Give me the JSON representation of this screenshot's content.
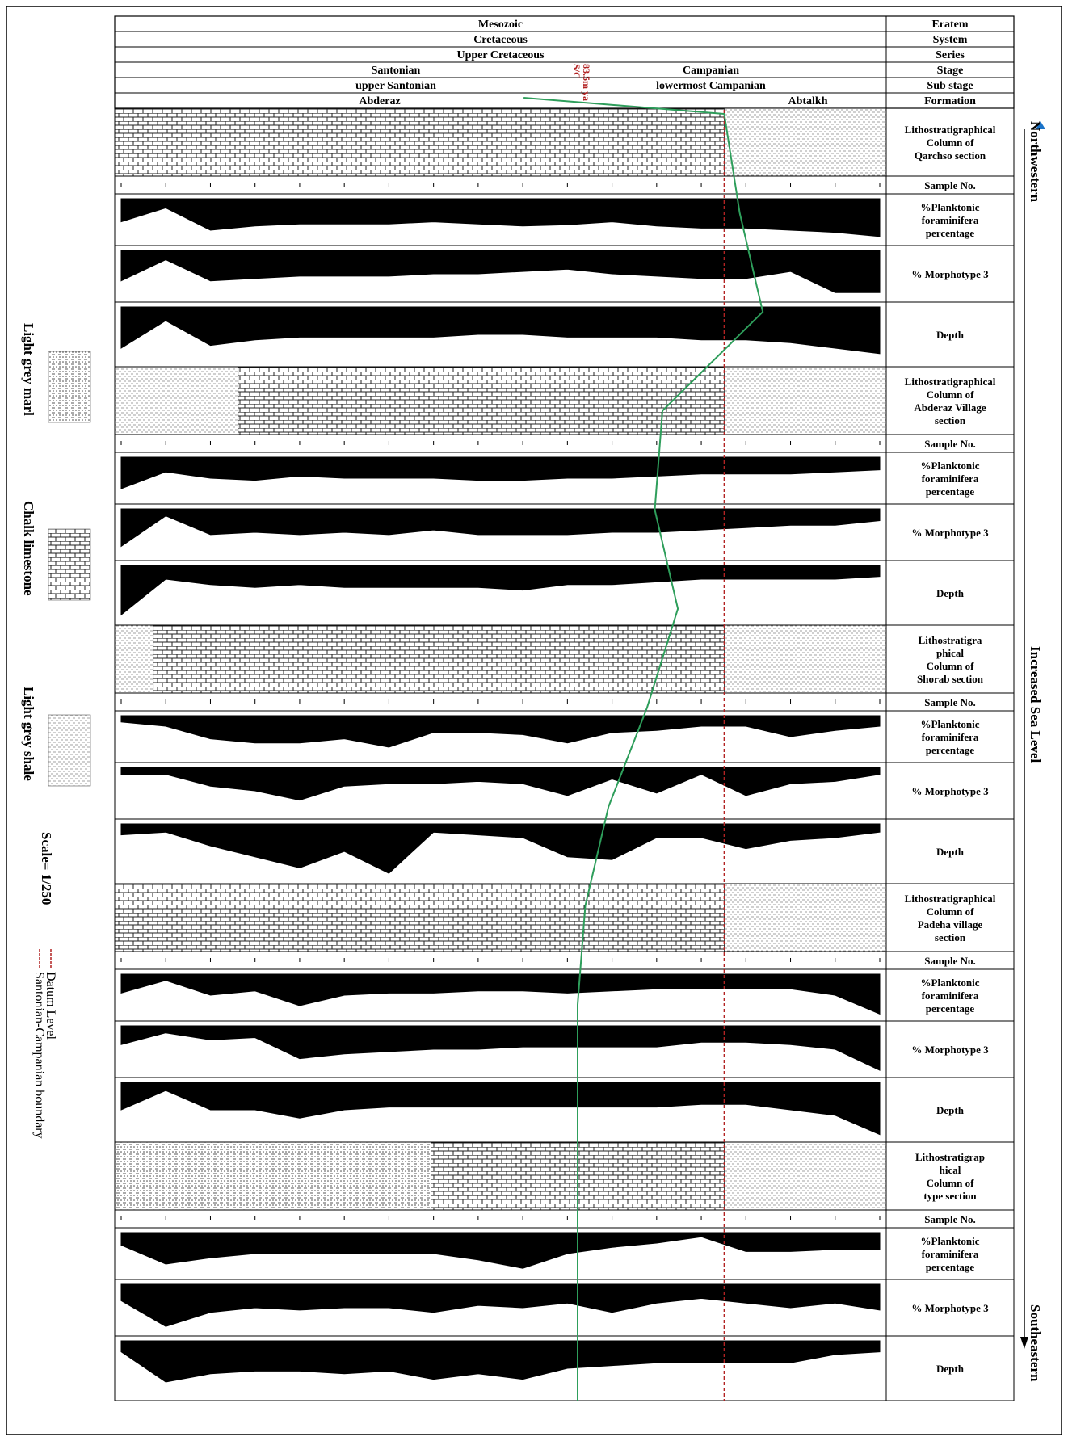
{
  "header_rows": [
    {
      "label": "Eratem",
      "cells": [
        "Mesozoic"
      ]
    },
    {
      "label": "System",
      "cells": [
        "Cretaceous"
      ]
    },
    {
      "label": "Series",
      "cells": [
        "Upper Cretaceous"
      ]
    },
    {
      "label": "Stage",
      "cells": [
        "Santonian",
        "Campanian"
      ]
    },
    {
      "label": "Sub stage",
      "cells": [
        "upper Santonian",
        "lowermost Campanian"
      ]
    },
    {
      "label": "Formation",
      "cells": [
        "Abderaz",
        "Abtalkh"
      ]
    }
  ],
  "boundary_marker": {
    "lines": [
      "S/C",
      "83.5m ya"
    ]
  },
  "legend": {
    "lithology": [
      {
        "name": "Light grey marl",
        "pattern": "marl"
      },
      {
        "name": "Chalk limestone",
        "pattern": "chalk"
      },
      {
        "name": "Light grey shale",
        "pattern": "shale"
      }
    ],
    "scale": "Scale= 1/250",
    "lines": [
      {
        "name": "Datum Level",
        "color": "#b22222"
      },
      {
        "name": "Santonian-Campanian boundary",
        "color": "#b22222"
      }
    ]
  },
  "right_axis": {
    "top": "Northwestern",
    "bottom": "Southeastern",
    "middle": "Increased Sea Level"
  },
  "sections": [
    {
      "litho_label": [
        "Lithostratigraphical",
        "Column of",
        "Qarchso section"
      ],
      "sample_label": "Sample No.",
      "litho_units": [
        {
          "to": 0.79,
          "pattern": "chalk"
        },
        {
          "to": 1.0,
          "pattern": "shale"
        }
      ],
      "curves": [
        {
          "label": [
            "%Planktonic",
            "foraminifera",
            "percentage"
          ],
          "values": [
            0.45,
            0.78,
            0.25,
            0.35,
            0.4,
            0.4,
            0.4,
            0.45,
            0.4,
            0.35,
            0.38,
            0.45,
            0.35,
            0.3,
            0.3,
            0.25,
            0.2,
            0.1
          ]
        },
        {
          "label": [
            "% Morphotype 3"
          ],
          "values": [
            0.35,
            0.8,
            0.35,
            0.4,
            0.45,
            0.45,
            0.45,
            0.5,
            0.5,
            0.55,
            0.6,
            0.5,
            0.45,
            0.4,
            0.4,
            0.55,
            0.1,
            0.1
          ]
        },
        {
          "label": [
            "Depth"
          ],
          "values": [
            0.25,
            0.75,
            0.3,
            0.4,
            0.45,
            0.45,
            0.45,
            0.45,
            0.5,
            0.5,
            0.45,
            0.45,
            0.45,
            0.4,
            0.4,
            0.35,
            0.25,
            0.15
          ]
        }
      ]
    },
    {
      "litho_label": [
        "Lithostratigraphical",
        "Column of",
        "Abderaz Village",
        "section"
      ],
      "sample_label": "Sample No.",
      "litho_units": [
        {
          "to": 0.16,
          "pattern": "shale"
        },
        {
          "to": 0.79,
          "pattern": "chalk"
        },
        {
          "to": 1.0,
          "pattern": "shale"
        }
      ],
      "curves": [
        {
          "label": [
            "%Planktonic",
            "foraminifera",
            "percentage"
          ],
          "values": [
            0.25,
            0.65,
            0.5,
            0.45,
            0.55,
            0.5,
            0.5,
            0.5,
            0.45,
            0.45,
            0.5,
            0.5,
            0.55,
            0.6,
            0.6,
            0.6,
            0.65,
            0.7
          ]
        },
        {
          "label": [
            "% Morphotype 3"
          ],
          "values": [
            0.2,
            0.85,
            0.45,
            0.5,
            0.45,
            0.5,
            0.45,
            0.55,
            0.45,
            0.45,
            0.45,
            0.5,
            0.5,
            0.55,
            0.6,
            0.65,
            0.65,
            0.75
          ]
        },
        {
          "label": [
            "Depth"
          ],
          "values": [
            0.1,
            0.75,
            0.65,
            0.6,
            0.65,
            0.6,
            0.6,
            0.6,
            0.6,
            0.55,
            0.65,
            0.65,
            0.7,
            0.75,
            0.75,
            0.75,
            0.75,
            0.8
          ]
        }
      ]
    },
    {
      "litho_label": [
        "Lithostratigra",
        "phical",
        "Column of",
        "Shorab section"
      ],
      "sample_label": "Sample No.",
      "litho_units": [
        {
          "to": 0.05,
          "pattern": "shale"
        },
        {
          "to": 0.79,
          "pattern": "chalk"
        },
        {
          "to": 1.0,
          "pattern": "shale"
        }
      ],
      "curves": [
        {
          "label": [
            "%Planktonic",
            "foraminifera",
            "percentage"
          ],
          "values": [
            0.85,
            0.75,
            0.45,
            0.35,
            0.35,
            0.45,
            0.25,
            0.6,
            0.6,
            0.55,
            0.35,
            0.6,
            0.65,
            0.75,
            0.75,
            0.5,
            0.65,
            0.75
          ]
        },
        {
          "label": [
            "% Morphotype 3"
          ],
          "values": [
            0.85,
            0.85,
            0.6,
            0.5,
            0.3,
            0.6,
            0.65,
            0.65,
            0.7,
            0.65,
            0.4,
            0.75,
            0.45,
            0.85,
            0.4,
            0.65,
            0.7,
            0.85
          ]
        },
        {
          "label": [
            "Depth"
          ],
          "values": [
            0.8,
            0.85,
            0.6,
            0.4,
            0.2,
            0.5,
            0.1,
            0.85,
            0.8,
            0.75,
            0.4,
            0.35,
            0.75,
            0.75,
            0.55,
            0.7,
            0.75,
            0.85
          ]
        }
      ]
    },
    {
      "litho_label": [
        "Lithostratigraphical",
        "Column of",
        "Padeha village",
        "section"
      ],
      "sample_label": "Sample No.",
      "litho_units": [
        {
          "to": 0.79,
          "pattern": "chalk"
        },
        {
          "to": 1.0,
          "pattern": "shale"
        }
      ],
      "curves": [
        {
          "label": [
            "%Planktonic",
            "foraminifera",
            "percentage"
          ],
          "values": [
            0.55,
            0.85,
            0.5,
            0.6,
            0.25,
            0.5,
            0.55,
            0.55,
            0.6,
            0.6,
            0.55,
            0.6,
            0.65,
            0.65,
            0.65,
            0.65,
            0.5,
            0.05
          ]
        },
        {
          "label": [
            "% Morphotype 3"
          ],
          "values": [
            0.6,
            0.85,
            0.7,
            0.75,
            0.3,
            0.4,
            0.45,
            0.5,
            0.5,
            0.55,
            0.55,
            0.55,
            0.55,
            0.65,
            0.65,
            0.6,
            0.5,
            0.05
          ]
        },
        {
          "label": [
            "Depth"
          ],
          "values": [
            0.5,
            0.85,
            0.5,
            0.5,
            0.35,
            0.5,
            0.55,
            0.55,
            0.55,
            0.55,
            0.55,
            0.55,
            0.55,
            0.6,
            0.6,
            0.5,
            0.4,
            0.05
          ]
        }
      ]
    },
    {
      "litho_label": [
        "Lithostratigrap",
        "hical",
        "Column of",
        "type section"
      ],
      "sample_label": "Sample No.",
      "litho_units": [
        {
          "to": 0.41,
          "pattern": "marl"
        },
        {
          "to": 0.79,
          "pattern": "chalk"
        },
        {
          "to": 1.0,
          "pattern": "shale"
        }
      ],
      "curves": [
        {
          "label": [
            "%Planktonic",
            "foraminifera",
            "percentage"
          ],
          "values": [
            0.7,
            0.25,
            0.4,
            0.5,
            0.5,
            0.5,
            0.5,
            0.5,
            0.35,
            0.15,
            0.5,
            0.65,
            0.75,
            0.9,
            0.55,
            0.55,
            0.6,
            0.6
          ]
        },
        {
          "label": [
            "% Morphotype 3"
          ],
          "values": [
            0.65,
            0.1,
            0.4,
            0.5,
            0.45,
            0.5,
            0.5,
            0.4,
            0.55,
            0.5,
            0.6,
            0.4,
            0.6,
            0.7,
            0.6,
            0.5,
            0.6,
            0.45
          ]
        },
        {
          "label": [
            "Depth"
          ],
          "values": [
            0.8,
            0.25,
            0.4,
            0.45,
            0.45,
            0.4,
            0.45,
            0.3,
            0.4,
            0.3,
            0.5,
            0.55,
            0.6,
            0.6,
            0.6,
            0.6,
            0.75,
            0.8
          ]
        }
      ]
    }
  ],
  "correlation_line": {
    "points": [
      0.79,
      0.81,
      0.84,
      0.71,
      0.7,
      0.73,
      0.69,
      0.64,
      0.61,
      0.6,
      0.6,
      0.6,
      0.6,
      0.6
    ]
  },
  "colors": {
    "grid": "#000000",
    "fill": "#000000",
    "datum": "#b22222",
    "correlation": "#2e9e5b",
    "arrow": "#1a73c9"
  }
}
